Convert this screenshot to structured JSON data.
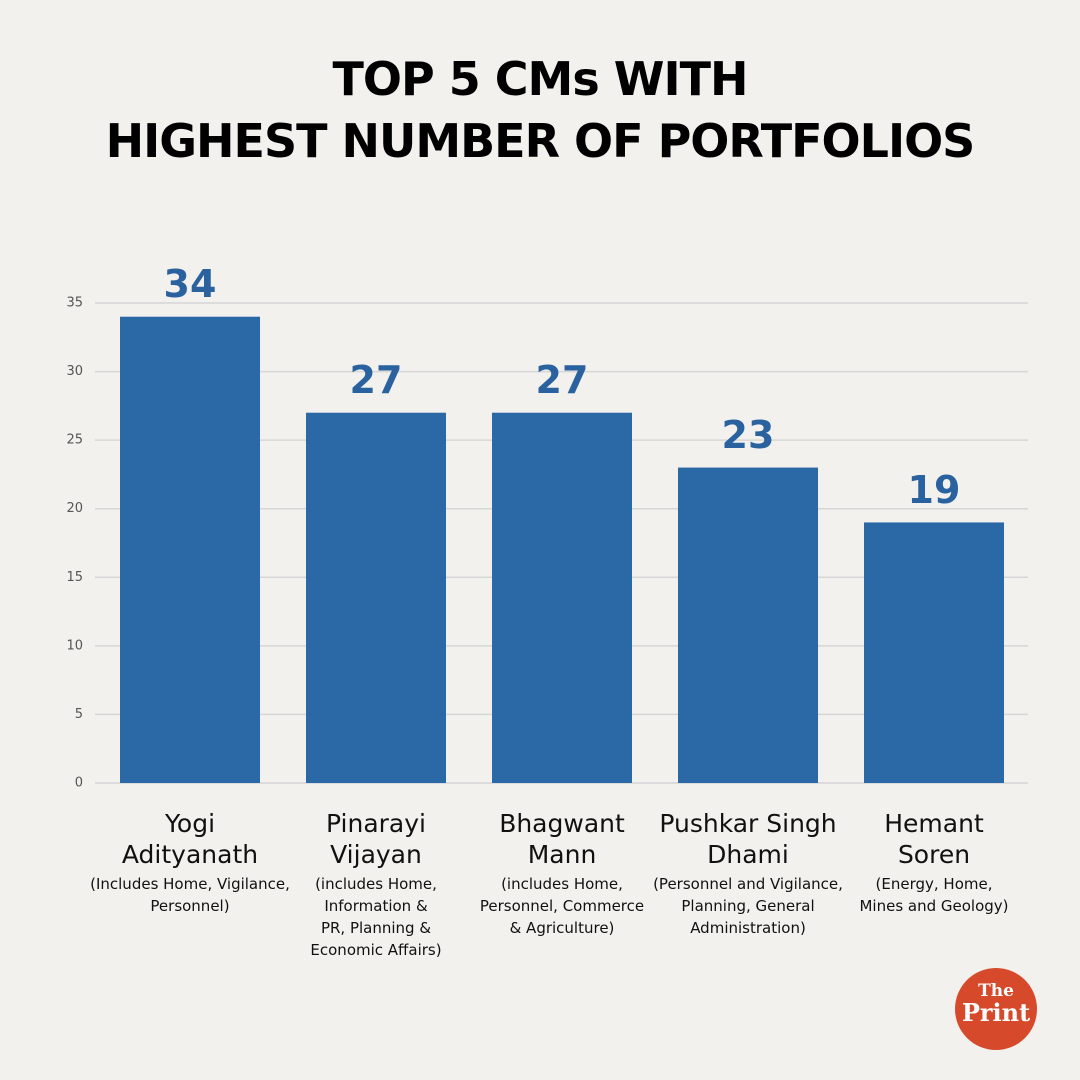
{
  "chart_data": {
    "type": "bar",
    "title": "TOP 5 CMs WITH\nHIGHEST NUMBER OF PORTFOLIOS",
    "categories": [
      "Yogi\nAdityanath",
      "Pinarayi\nVijayan",
      "Bhagwant\nMann",
      "Pushkar Singh\nDhami",
      "Hemant\nSoren"
    ],
    "category_notes": [
      "(Includes Home, Vigilance,\nPersonnel)",
      "(includes Home,\nInformation &\nPR, Planning &\nEconomic Affairs)",
      "(includes Home,\nPersonnel, Commerce\n& Agriculture)",
      "(Personnel and Vigilance,\nPlanning, General\nAdministration)",
      "(Energy, Home,\nMines and Geology)"
    ],
    "values": [
      34,
      27,
      27,
      23,
      19
    ],
    "color": "#2b68a6",
    "ylim": [
      0,
      35
    ],
    "yticks": [
      0,
      5,
      10,
      15,
      20,
      25,
      30,
      35
    ],
    "grid": true
  },
  "logo": {
    "line1": "The",
    "line2": "Print"
  }
}
